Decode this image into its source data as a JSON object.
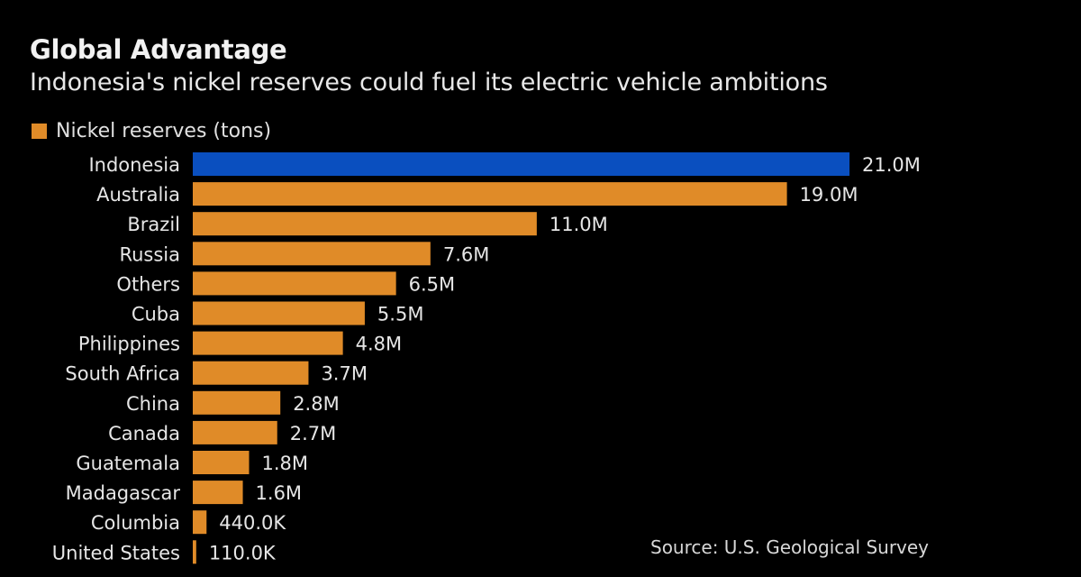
{
  "chart_data": {
    "type": "bar",
    "orientation": "horizontal",
    "title": "Global Advantage",
    "subtitle": "Indonesia's nickel reserves could fuel its electric vehicle ambitions",
    "xlabel": "",
    "ylabel": "",
    "legend": {
      "position": "top-left",
      "entries": [
        {
          "label": "Nickel reserves (tons)",
          "color": "#e08b28"
        }
      ]
    },
    "grid": false,
    "xlim": [
      0,
      21000000
    ],
    "categories": [
      "Indonesia",
      "Australia",
      "Brazil",
      "Russia",
      "Others",
      "Cuba",
      "Philippines",
      "South Africa",
      "China",
      "Canada",
      "Guatemala",
      "Madagascar",
      "Columbia",
      "United States"
    ],
    "series": [
      {
        "name": "Nickel reserves (tons)",
        "values": [
          21000000,
          19000000,
          11000000,
          7600000,
          6500000,
          5500000,
          4800000,
          3700000,
          2800000,
          2700000,
          1800000,
          1600000,
          440000,
          110000
        ],
        "labels": [
          "21.0M",
          "19.0M",
          "11.0M",
          "7.6M",
          "6.5M",
          "5.5M",
          "4.8M",
          "3.7M",
          "2.8M",
          "2.7M",
          "1.8M",
          "1.6M",
          "440.0K",
          "110.0K"
        ],
        "highlight": {
          "index": 0,
          "color": "#0a4fbf"
        },
        "color": "#e08b28"
      }
    ],
    "source": "Source: U.S. Geological Survey"
  }
}
